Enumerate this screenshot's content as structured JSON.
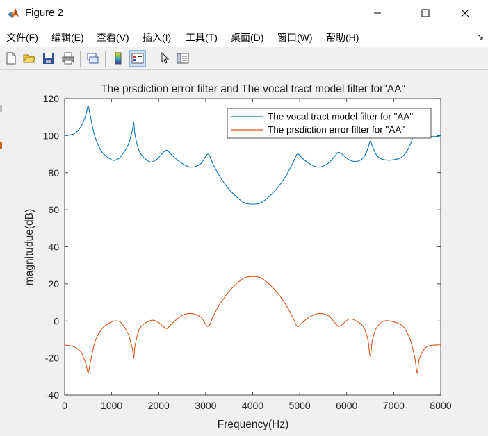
{
  "window": {
    "title": "Figure 2",
    "controls": [
      "minimize",
      "maximize",
      "close"
    ]
  },
  "menu": {
    "items": [
      "文件(F)",
      "编辑(E)",
      "查看(V)",
      "插入(I)",
      "工具(T)",
      "桌面(D)",
      "窗口(W)",
      "帮助(H)"
    ],
    "overflow": "↘"
  },
  "toolbar": {
    "icons": [
      "new-figure-icon",
      "open-file-icon",
      "save-icon",
      "print-icon",
      "link-plot-icon",
      "colorbar-icon",
      "legend-icon",
      "pointer-icon",
      "property-editor-icon"
    ],
    "active": "legend-icon"
  },
  "colors": {
    "series1": "#0072BD",
    "series2": "#D95319",
    "figure_bg": "#f0f0f0",
    "axes_bg": "#ffffff"
  },
  "chart_data": {
    "type": "line",
    "title": "The prsdiction error filter and The vocal tract model filter for\"AA\"",
    "xlabel": "Frequency(Hz)",
    "ylabel": "magnitudue(dB)",
    "xlim": [
      0,
      8000
    ],
    "ylim": [
      -40,
      120
    ],
    "xticks": [
      0,
      1000,
      2000,
      3000,
      4000,
      5000,
      6000,
      7000,
      8000
    ],
    "yticks": [
      -40,
      -20,
      0,
      20,
      40,
      60,
      80,
      100,
      120
    ],
    "grid": false,
    "legend_position": "top-right",
    "series": [
      {
        "name": "The vocal tract model filter for \"AA\"",
        "x": [
          0,
          200,
          350,
          450,
          500,
          550,
          650,
          800,
          1000,
          1100,
          1200,
          1350,
          1440,
          1470,
          1500,
          1600,
          1800,
          1950,
          2100,
          2180,
          2300,
          2500,
          2700,
          2900,
          3050,
          3150,
          3300,
          3500,
          3700,
          3850,
          4000,
          4150,
          4300,
          4500,
          4700,
          4850,
          4950,
          5050,
          5200,
          5400,
          5600,
          5750,
          5820,
          5900,
          6050,
          6200,
          6350,
          6450,
          6500,
          6550,
          6650,
          6800,
          7000,
          7200,
          7350,
          7450,
          7500,
          7550,
          7700,
          7900,
          8000
        ],
        "y": [
          100,
          101,
          105,
          111,
          116,
          110,
          99,
          91,
          87,
          87,
          89,
          95,
          103,
          107,
          100,
          91,
          86,
          87,
          91,
          92,
          89,
          85,
          83,
          85,
          90,
          85,
          78,
          71,
          66,
          63.5,
          63,
          63.5,
          66,
          71,
          78,
          85,
          90,
          88,
          85,
          83,
          85,
          89,
          91,
          90,
          87,
          86,
          88,
          93,
          97,
          94,
          89,
          87,
          87,
          89,
          95,
          103,
          107,
          104,
          100,
          99.5,
          100
        ]
      },
      {
        "name": "The prsdiction error filter for \"AA\"",
        "x": [
          0,
          200,
          350,
          450,
          500,
          550,
          650,
          800,
          1000,
          1100,
          1200,
          1350,
          1440,
          1470,
          1500,
          1600,
          1800,
          1950,
          2100,
          2180,
          2300,
          2500,
          2700,
          2900,
          3050,
          3150,
          3300,
          3500,
          3700,
          3850,
          4000,
          4150,
          4300,
          4500,
          4700,
          4850,
          4950,
          5050,
          5200,
          5400,
          5600,
          5750,
          5820,
          5900,
          6050,
          6200,
          6350,
          6450,
          6500,
          6550,
          6650,
          6800,
          7000,
          7200,
          7350,
          7450,
          7500,
          7550,
          7700,
          7900,
          8000
        ],
        "y": [
          -13,
          -14,
          -17,
          -23,
          -28,
          -22,
          -11,
          -4,
          -0.5,
          0,
          -1,
          -7,
          -15,
          -20,
          -13,
          -4,
          0,
          0,
          -3,
          -4,
          -1,
          3,
          4,
          2,
          -3,
          2,
          9,
          16,
          21,
          23.5,
          24,
          23.5,
          21,
          16,
          9,
          2,
          -3,
          -1,
          2,
          4,
          3,
          -1,
          -3,
          -2,
          1,
          0,
          -3,
          -10,
          -19,
          -10,
          -3,
          0,
          -0.5,
          -3,
          -10,
          -20,
          -28,
          -20,
          -14,
          -13,
          -13
        ]
      }
    ]
  }
}
